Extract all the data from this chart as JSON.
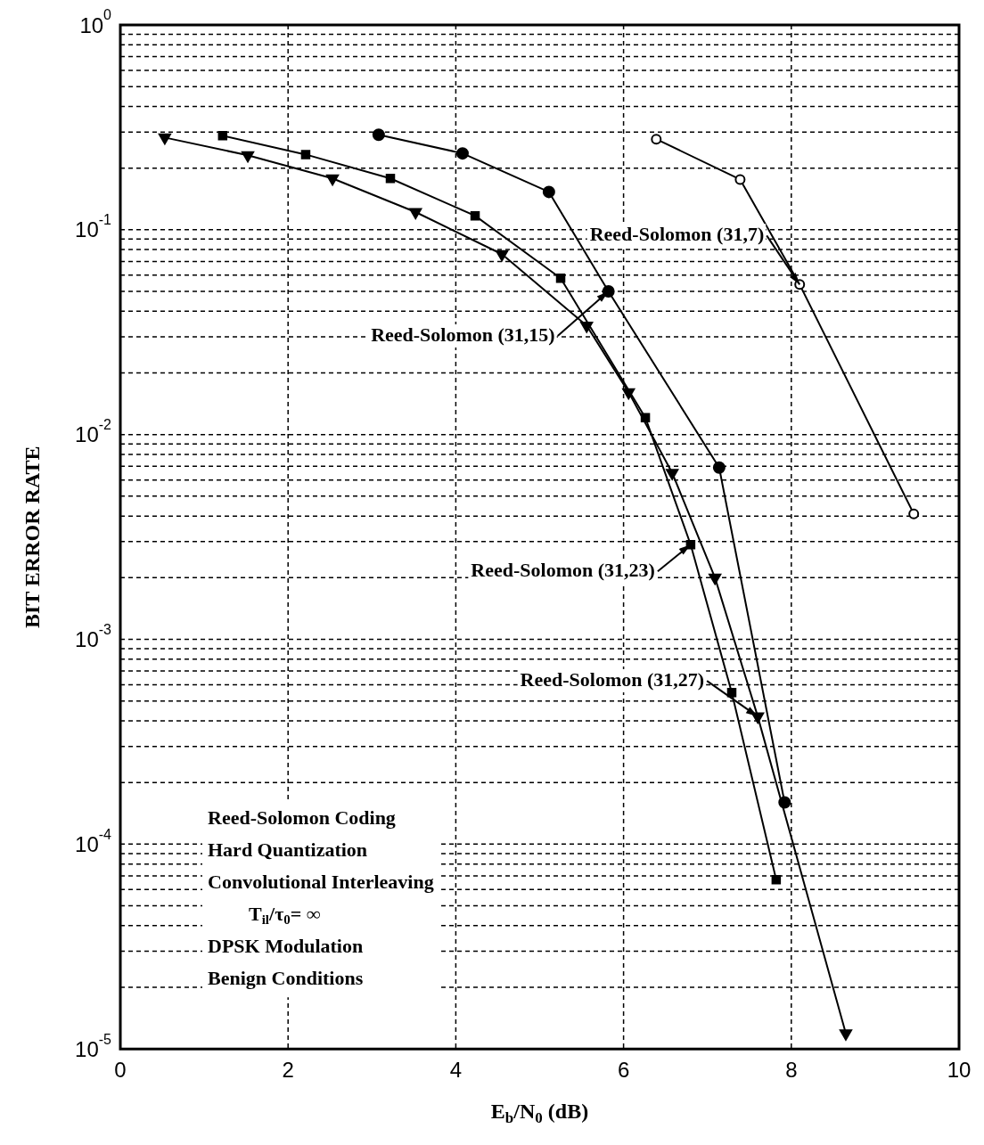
{
  "chart_data": {
    "type": "line",
    "xlabel": "E$_{b}$/N$_{0}$ (dB)",
    "ylabel": "BIT ERROR RATE",
    "log": "y",
    "grid": true,
    "legend": false,
    "line_style": "solid",
    "xlim": [
      0,
      10
    ],
    "xticks": [
      0,
      2,
      4,
      6,
      8,
      10
    ],
    "ylim": [
      1e-05,
      1
    ],
    "yticks": [
      {
        "value": 1,
        "label": "10$^{0}$"
      },
      {
        "value": 0.1,
        "label": "10$^{-1}$"
      },
      {
        "value": 0.01,
        "label": "10$^{-2}$"
      },
      {
        "value": 0.001,
        "label": "10$^{-3}$"
      },
      {
        "value": 0.0001,
        "label": "10$^{-4}$"
      },
      {
        "value": 1e-05,
        "label": "10$^{-5}$"
      }
    ],
    "series": [
      {
        "color": "#000000",
        "marker": "circle-open",
        "x": [
          6.39,
          7.39,
          8.1,
          9.46
        ],
        "values": [
          0.277,
          0.176,
          0.054,
          0.0041
        ]
      },
      {
        "color": "#000000",
        "marker": "circle",
        "x": [
          3.08,
          4.08,
          5.11,
          5.82,
          7.14,
          7.92
        ],
        "values": [
          0.291,
          0.236,
          0.153,
          0.05,
          0.0069,
          0.00016
        ]
      },
      {
        "color": "#000000",
        "marker": "square",
        "x": [
          1.22,
          2.21,
          3.22,
          4.23,
          5.25,
          6.26,
          6.8,
          7.29,
          7.82
        ],
        "values": [
          0.288,
          0.233,
          0.178,
          0.117,
          0.058,
          0.0121,
          0.0029,
          0.00055,
          6.7e-05
        ]
      },
      {
        "color": "#000000",
        "marker": "triangle",
        "x": [
          0.53,
          1.52,
          2.53,
          3.52,
          4.55,
          5.56,
          6.06,
          6.58,
          7.09,
          7.6,
          8.65
        ],
        "values": [
          0.282,
          0.231,
          0.178,
          0.122,
          0.076,
          0.034,
          0.0161,
          0.0065,
          0.002,
          0.00042,
          1.19e-05
        ]
      }
    ],
    "annotations": [
      {
        "text": "Reed-Solomon (31,7)",
        "x": 8.1,
        "y": 0.054
      },
      {
        "text": "Reed-Solomon (31,15)",
        "x": 5.82,
        "y": 0.05
      },
      {
        "text": "Reed-Solomon (31,23)",
        "x": 6.8,
        "y": 0.0029
      },
      {
        "text": "Reed-Solomon (31,27)",
        "x": 7.6,
        "y": 0.00042
      },
      "Reed-Solomon Coding",
      "Hard Quantization",
      "Convolutional Interleaving",
      "T$_{il}$/τ$_{0}$= ∞",
      "DPSK Modulation",
      "Benign Conditions"
    ]
  }
}
